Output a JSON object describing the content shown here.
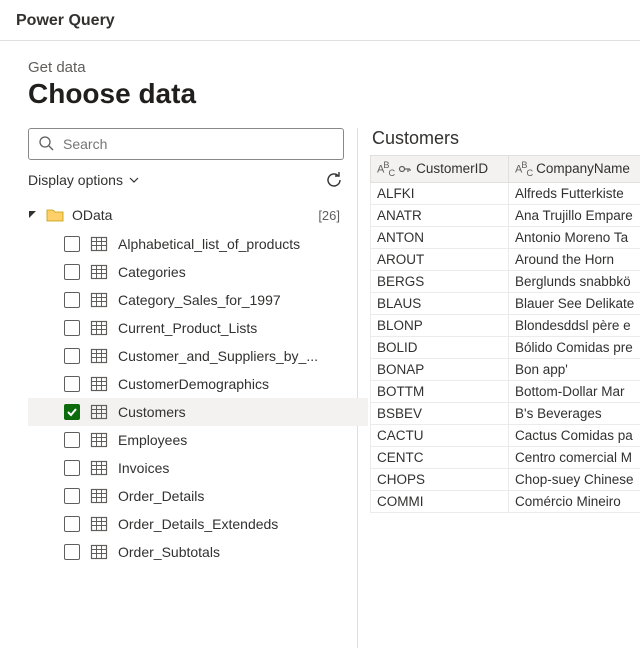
{
  "app_title": "Power Query",
  "header": {
    "supertitle": "Get data",
    "title": "Choose data"
  },
  "search": {
    "placeholder": "Search"
  },
  "display_options_label": "Display options",
  "tree": {
    "root": {
      "label": "OData",
      "count": "[26]"
    },
    "items": [
      {
        "label": "Alphabetical_list_of_products",
        "checked": false
      },
      {
        "label": "Categories",
        "checked": false
      },
      {
        "label": "Category_Sales_for_1997",
        "checked": false
      },
      {
        "label": "Current_Product_Lists",
        "checked": false
      },
      {
        "label": "Customer_and_Suppliers_by_...",
        "checked": false
      },
      {
        "label": "CustomerDemographics",
        "checked": false
      },
      {
        "label": "Customers",
        "checked": true
      },
      {
        "label": "Employees",
        "checked": false
      },
      {
        "label": "Invoices",
        "checked": false
      },
      {
        "label": "Order_Details",
        "checked": false
      },
      {
        "label": "Order_Details_Extendeds",
        "checked": false
      },
      {
        "label": "Order_Subtotals",
        "checked": false
      }
    ]
  },
  "preview": {
    "title": "Customers",
    "columns": [
      {
        "label": "CustomerID",
        "type_label": "ABC",
        "key": true
      },
      {
        "label": "CompanyName",
        "type_label": "ABC",
        "key": false
      }
    ],
    "rows": [
      [
        "ALFKI",
        "Alfreds Futterkiste"
      ],
      [
        "ANATR",
        "Ana Trujillo Empare"
      ],
      [
        "ANTON",
        "Antonio Moreno Ta"
      ],
      [
        "AROUT",
        "Around the Horn"
      ],
      [
        "BERGS",
        "Berglunds snabbkö"
      ],
      [
        "BLAUS",
        "Blauer See Delikate"
      ],
      [
        "BLONP",
        "Blondesddsl père e"
      ],
      [
        "BOLID",
        "Bólido Comidas pre"
      ],
      [
        "BONAP",
        "Bon app'"
      ],
      [
        "BOTTM",
        "Bottom-Dollar Mar"
      ],
      [
        "BSBEV",
        "B's Beverages"
      ],
      [
        "CACTU",
        "Cactus Comidas pa"
      ],
      [
        "CENTC",
        "Centro comercial M"
      ],
      [
        "CHOPS",
        "Chop-suey Chinese"
      ],
      [
        "COMMI",
        "Comércio Mineiro"
      ]
    ]
  }
}
